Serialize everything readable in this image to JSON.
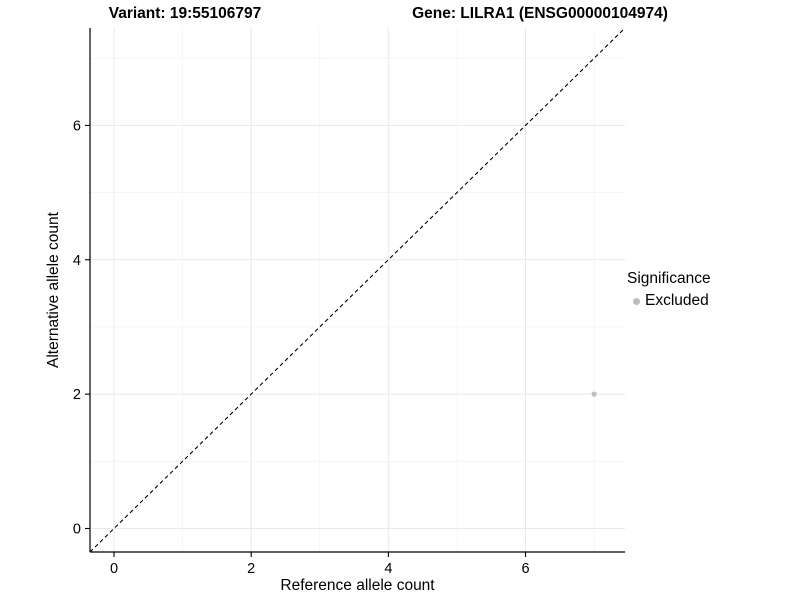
{
  "header": {
    "left_title": "Variant: 19:55106797",
    "right_title": "Gene: LILRA1 (ENSG00000104974)"
  },
  "chart_data": {
    "type": "scatter",
    "title_left": "Variant: 19:55106797",
    "title_right": "Gene: LILRA1 (ENSG00000104974)",
    "xlabel": "Reference allele count",
    "ylabel": "Alternative allele count",
    "xlim": [
      -0.35,
      7.45
    ],
    "ylim": [
      -0.35,
      7.45
    ],
    "x_ticks": [
      0,
      2,
      4,
      6
    ],
    "y_ticks": [
      0,
      2,
      4,
      6
    ],
    "x_minor_ticks": [
      1,
      3,
      5,
      7
    ],
    "y_minor_ticks": [
      1,
      3,
      5,
      7
    ],
    "grid": true,
    "identity_line": {
      "style": "dashed",
      "from": [
        -0.35,
        -0.35
      ],
      "to": [
        7.45,
        7.45
      ],
      "color": "#000000"
    },
    "series": [
      {
        "name": "Excluded",
        "color": "#bdbdbd",
        "points": [
          {
            "x": 7,
            "y": 2
          }
        ]
      }
    ],
    "legend": {
      "title": "Significance",
      "position": "right",
      "items": [
        {
          "label": "Excluded",
          "color": "#bdbdbd"
        }
      ]
    }
  },
  "colors": {
    "background": "#ffffff",
    "grid_major": "#e9e9e9",
    "grid_minor": "#f4f4f4",
    "axis": "#000000",
    "text": "#000000"
  }
}
